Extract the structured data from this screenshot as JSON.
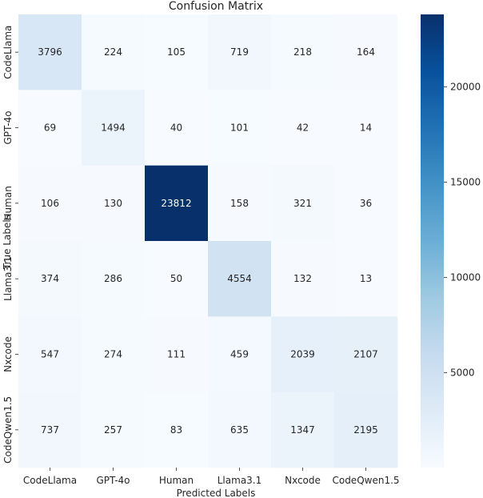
{
  "chart_data": {
    "type": "heatmap",
    "title": "Confusion Matrix",
    "xlabel": "Predicted Labels",
    "ylabel": "True Labels",
    "x_categories": [
      "CodeLlama",
      "GPT-4o",
      "Human",
      "Llama3.1",
      "Nxcode",
      "CodeQwen1.5"
    ],
    "y_categories": [
      "CodeLlama",
      "GPT-4o",
      "Human",
      "Llama3.1",
      "Nxcode",
      "CodeQwen1.5"
    ],
    "values": [
      [
        3796,
        224,
        105,
        719,
        218,
        164
      ],
      [
        69,
        1494,
        40,
        101,
        42,
        14
      ],
      [
        106,
        130,
        23812,
        158,
        321,
        36
      ],
      [
        374,
        286,
        50,
        4554,
        132,
        13
      ],
      [
        547,
        274,
        111,
        459,
        2039,
        2107
      ],
      [
        737,
        257,
        83,
        635,
        1347,
        2195
      ]
    ],
    "colormap": "Blues",
    "colorbar": {
      "min": 13,
      "max": 23812,
      "ticks": [
        5000,
        10000,
        15000,
        20000
      ]
    }
  }
}
